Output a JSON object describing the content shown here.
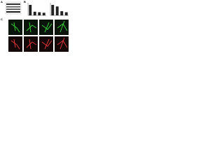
{
  "panels": {
    "a": {
      "label": "A"
    },
    "b": {
      "label": "B"
    },
    "c": {
      "label": "C"
    }
  },
  "panel_b": [
    {
      "type": "bar",
      "values": [
        1,
        0.35,
        0.3,
        0.25
      ],
      "color": "#222",
      "ylim": [
        0,
        1.2
      ]
    },
    {
      "type": "bar",
      "values": [
        1,
        0.85,
        0.4,
        0.3
      ],
      "color": "#222",
      "ylim": [
        0,
        1.2
      ]
    }
  ]
}
